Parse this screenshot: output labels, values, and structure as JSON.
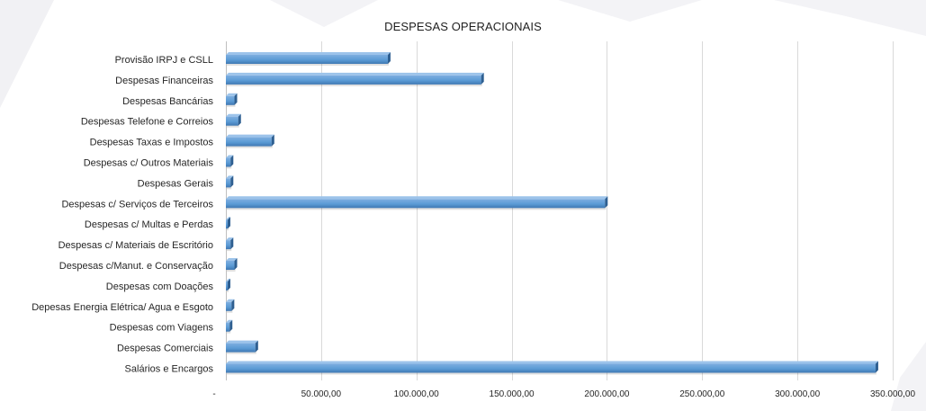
{
  "chart_data": {
    "type": "bar",
    "orientation": "horizontal",
    "title": "DESPESAS OPERACIONAIS",
    "xlabel": "",
    "ylabel": "",
    "xlim": [
      0,
      350000
    ],
    "x_ticks": [
      0,
      50000,
      100000,
      150000,
      200000,
      250000,
      300000,
      350000
    ],
    "x_tick_labels": [
      "-",
      "50.000,00",
      "100.000,00",
      "150.000,00",
      "200.000,00",
      "250.000,00",
      "300.000,00",
      "350.000,00"
    ],
    "grid": "vertical major gridlines",
    "legend": "none",
    "categories": [
      "Provisão IRPJ e CSLL",
      "Despesas Financeiras",
      "Despesas Bancárias",
      "Despesas Telefone e Correios",
      "Despesas Taxas e Impostos",
      "Despesas c/ Outros Materiais",
      "Despesas Gerais",
      "Despesas c/ Serviços de Terceiros",
      "Despesas c/ Multas e Perdas",
      "Despesas c/ Materiais de Escritório",
      "Despesas c/Manut. e Conservação",
      "Despesas com Doações",
      "Depesas Energia Elétrica/ Agua e Esgoto",
      "Despesas com Viagens",
      "Despesas Comerciais",
      "Salários e Encargos"
    ],
    "values": [
      85000,
      134000,
      4500,
      6500,
      24000,
      2500,
      2500,
      199000,
      500,
      2500,
      4500,
      500,
      3000,
      2000,
      15500,
      341000
    ]
  },
  "colors": {
    "bar_top": "#7eaee0",
    "bar_main": "#5b9bd5",
    "bar_bottom": "#3f78b3",
    "bar_cap": "#2e5f91",
    "grid": "#d9d9d9",
    "text": "#262626",
    "background_band": "#f2f2f4"
  }
}
